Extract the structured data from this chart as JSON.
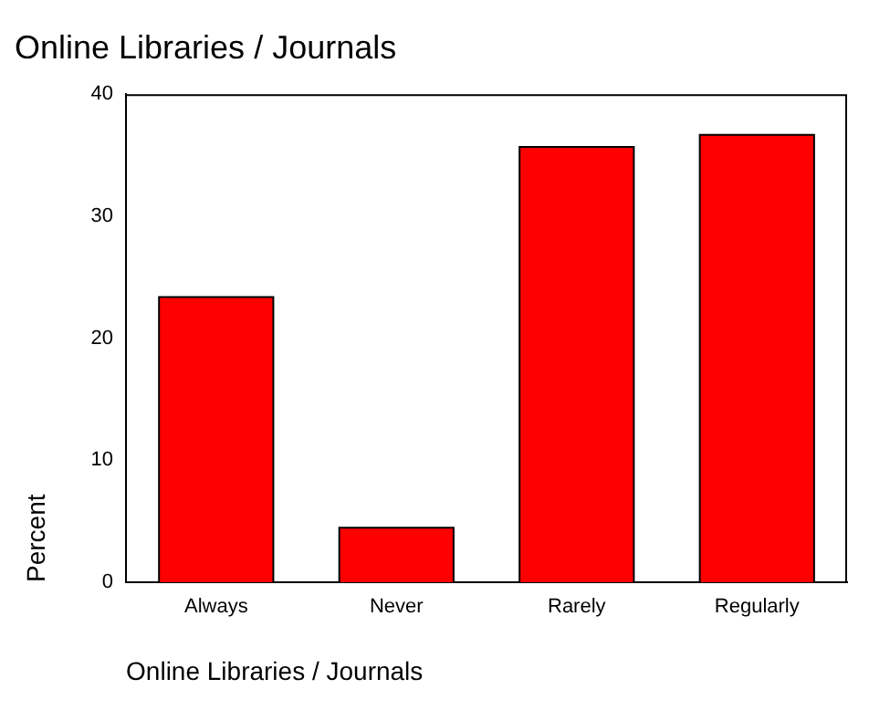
{
  "chart_data": {
    "type": "bar",
    "title": "Online Libraries / Journals",
    "xlabel": "Online Libraries / Journals",
    "ylabel": "Percent",
    "categories": [
      "Always",
      "Never",
      "Rarely",
      "Regularly"
    ],
    "values": [
      23.3,
      4.4,
      35.6,
      36.6
    ],
    "color": "#ff0000",
    "ylim": [
      0,
      40
    ],
    "yticks": [
      0,
      10,
      20,
      30,
      40
    ],
    "grid": false,
    "legend": false
  }
}
